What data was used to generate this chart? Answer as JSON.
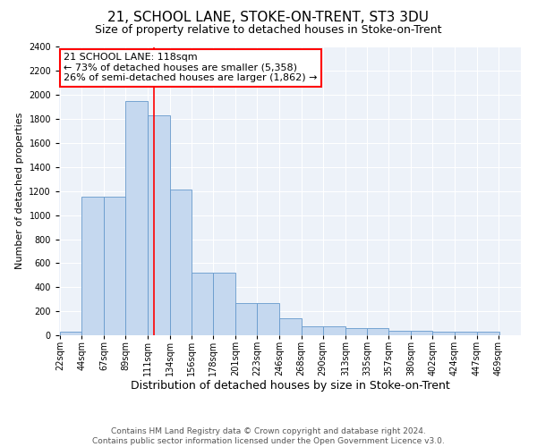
{
  "title": "21, SCHOOL LANE, STOKE-ON-TRENT, ST3 3DU",
  "subtitle": "Size of property relative to detached houses in Stoke-on-Trent",
  "xlabel": "Distribution of detached houses by size in Stoke-on-Trent",
  "ylabel": "Number of detached properties",
  "footnote1": "Contains HM Land Registry data © Crown copyright and database right 2024.",
  "footnote2": "Contains public sector information licensed under the Open Government Licence v3.0.",
  "bin_edges": [
    22,
    44,
    67,
    89,
    111,
    134,
    156,
    178,
    201,
    223,
    246,
    268,
    290,
    313,
    335,
    357,
    380,
    402,
    424,
    447,
    469
  ],
  "bin_labels": [
    "22sqm",
    "44sqm",
    "67sqm",
    "89sqm",
    "111sqm",
    "134sqm",
    "156sqm",
    "178sqm",
    "201sqm",
    "223sqm",
    "246sqm",
    "268sqm",
    "290sqm",
    "313sqm",
    "335sqm",
    "357sqm",
    "380sqm",
    "402sqm",
    "424sqm",
    "447sqm",
    "469sqm"
  ],
  "bar_heights": [
    30,
    1150,
    1150,
    1950,
    1830,
    1210,
    520,
    520,
    270,
    270,
    145,
    75,
    75,
    60,
    60,
    40,
    40,
    30,
    30,
    30
  ],
  "bar_color": "#c5d8ef",
  "bar_edge_color": "#6699cc",
  "vline_x": 118,
  "vline_color": "red",
  "annotation_title": "21 SCHOOL LANE: 118sqm",
  "annotation_line1": "← 73% of detached houses are smaller (5,358)",
  "annotation_line2": "26% of semi-detached houses are larger (1,862) →",
  "annotation_box_color": "red",
  "ylim": [
    0,
    2400
  ],
  "yticks": [
    0,
    200,
    400,
    600,
    800,
    1000,
    1200,
    1400,
    1600,
    1800,
    2000,
    2200,
    2400
  ],
  "bg_color": "#edf2f9",
  "title_fontsize": 11,
  "subtitle_fontsize": 9,
  "xlabel_fontsize": 9,
  "ylabel_fontsize": 8,
  "tick_fontsize": 7,
  "annotation_fontsize": 8,
  "footnote_fontsize": 6.5
}
